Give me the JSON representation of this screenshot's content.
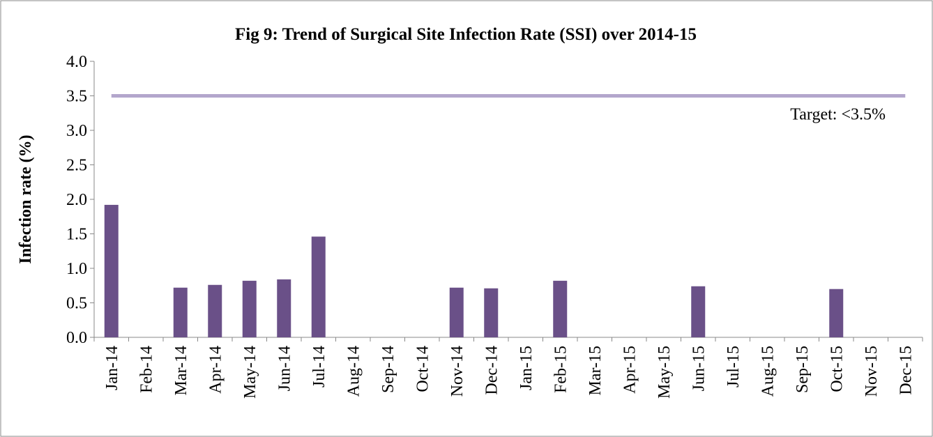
{
  "chart_data": {
    "type": "bar",
    "title": "Fig 9: Trend of Surgical Site Infection Rate (SSI) over 2014-15",
    "y_label": "Infection rate (%)",
    "categories": [
      "Jan-14",
      "Feb-14",
      "Mar-14",
      "Apr-14",
      "May-14",
      "Jun-14",
      "Jul-14",
      "Aug-14",
      "Sep-14",
      "Oct-14",
      "Nov-14",
      "Dec-14",
      "Jan-15",
      "Feb-15",
      "Mar-15",
      "Apr-15",
      "May-15",
      "Jun-15",
      "Jul-15",
      "Aug-15",
      "Sep-15",
      "Oct-15",
      "Nov-15",
      "Dec-15"
    ],
    "values": [
      1.92,
      0,
      0.72,
      0.76,
      0.82,
      0.84,
      1.46,
      0,
      0,
      0,
      0.72,
      0.71,
      0,
      0.82,
      0,
      0,
      0,
      0.74,
      0,
      0,
      0,
      0.7,
      0,
      0
    ],
    "color": "#6a5088",
    "target": {
      "value": 3.5,
      "label": "Target: <3.5%",
      "color": "#b3a6cc"
    },
    "ylim": [
      0,
      4
    ],
    "yticks": [
      {
        "value": 0,
        "label": "0.0"
      },
      {
        "value": 0.5,
        "label": "0.5"
      },
      {
        "value": 1,
        "label": "1.0"
      },
      {
        "value": 1.5,
        "label": "1.5"
      },
      {
        "value": 2,
        "label": "2.0"
      },
      {
        "value": 2.5,
        "label": "2.5"
      },
      {
        "value": 3,
        "label": "3.0"
      },
      {
        "value": 3.5,
        "label": "3.5"
      },
      {
        "value": 4,
        "label": "4.0"
      }
    ]
  }
}
